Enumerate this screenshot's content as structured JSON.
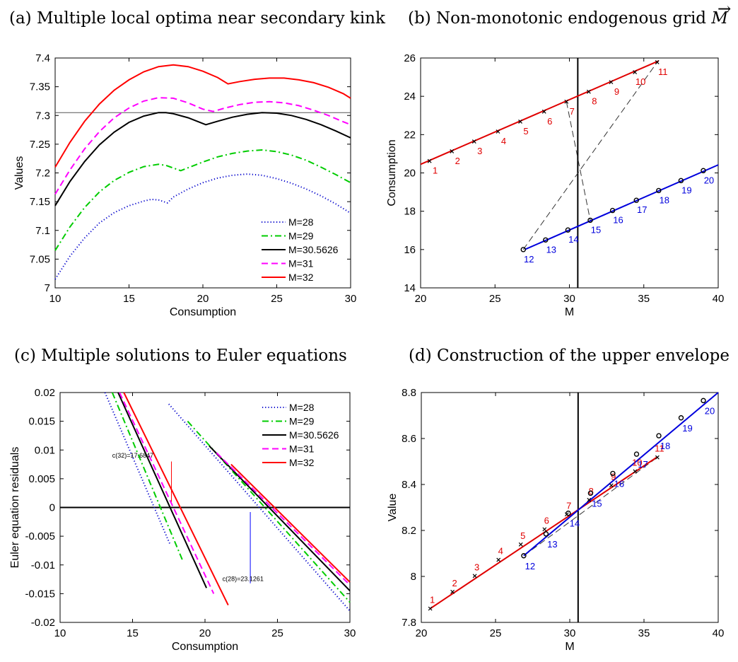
{
  "chart_data": [
    {
      "id": "a",
      "type": "line",
      "title": "(a) Multiple local optima near secondary kink",
      "xlabel": "Consumption",
      "ylabel": "Values",
      "xlim": [
        10,
        30
      ],
      "ylim": [
        7,
        7.4
      ],
      "xticks": [
        "10",
        "15",
        "20",
        "25",
        "30"
      ],
      "yticks": [
        "7",
        "7.05",
        "7.1",
        "7.15",
        "7.2",
        "7.25",
        "7.3",
        "7.35",
        "7.4"
      ],
      "legend": "bottom-right",
      "hline": 7.305,
      "series": [
        {
          "name": "M=28",
          "color": "#0000cc",
          "style": "dotted",
          "points": [
            [
              10,
              7.015
            ],
            [
              11,
              7.055
            ],
            [
              12,
              7.087
            ],
            [
              13,
              7.113
            ],
            [
              14,
              7.131
            ],
            [
              15,
              7.143
            ],
            [
              16,
              7.151
            ],
            [
              16.5,
              7.154
            ],
            [
              17,
              7.153
            ],
            [
              17.6,
              7.148
            ],
            [
              18,
              7.158
            ],
            [
              19,
              7.172
            ],
            [
              20,
              7.183
            ],
            [
              21,
              7.191
            ],
            [
              22,
              7.196
            ],
            [
              23,
              7.198
            ],
            [
              24,
              7.196
            ],
            [
              25,
              7.19
            ],
            [
              26,
              7.182
            ],
            [
              27,
              7.172
            ],
            [
              28,
              7.16
            ],
            [
              29,
              7.146
            ],
            [
              30,
              7.13
            ]
          ]
        },
        {
          "name": "M=29",
          "color": "#00cc00",
          "style": "dashdot",
          "points": [
            [
              10,
              7.065
            ],
            [
              11,
              7.106
            ],
            [
              12,
              7.14
            ],
            [
              13,
              7.167
            ],
            [
              14,
              7.187
            ],
            [
              15,
              7.201
            ],
            [
              16,
              7.211
            ],
            [
              17,
              7.215
            ],
            [
              17.5,
              7.213
            ],
            [
              18.5,
              7.204
            ],
            [
              19,
              7.209
            ],
            [
              20,
              7.219
            ],
            [
              21,
              7.228
            ],
            [
              22,
              7.234
            ],
            [
              23,
              7.238
            ],
            [
              24,
              7.24
            ],
            [
              25,
              7.237
            ],
            [
              26,
              7.231
            ],
            [
              27,
              7.222
            ],
            [
              28,
              7.21
            ],
            [
              29,
              7.197
            ],
            [
              30,
              7.183
            ]
          ]
        },
        {
          "name": "M=30.5626",
          "color": "#000000",
          "style": "solid",
          "points": [
            [
              10,
              7.143
            ],
            [
              11,
              7.185
            ],
            [
              12,
              7.22
            ],
            [
              13,
              7.249
            ],
            [
              14,
              7.271
            ],
            [
              15,
              7.288
            ],
            [
              16,
              7.299
            ],
            [
              17,
              7.305
            ],
            [
              17.5,
              7.305
            ],
            [
              18,
              7.303
            ],
            [
              19,
              7.296
            ],
            [
              20.2,
              7.284
            ],
            [
              21,
              7.29
            ],
            [
              22,
              7.297
            ],
            [
              23,
              7.302
            ],
            [
              24,
              7.305
            ],
            [
              25,
              7.304
            ],
            [
              26,
              7.3
            ],
            [
              27,
              7.293
            ],
            [
              28,
              7.284
            ],
            [
              29,
              7.273
            ],
            [
              30,
              7.261
            ]
          ]
        },
        {
          "name": "M=31",
          "color": "#ff00ff",
          "style": "dashed",
          "points": [
            [
              10,
              7.163
            ],
            [
              11,
              7.205
            ],
            [
              12,
              7.242
            ],
            [
              13,
              7.272
            ],
            [
              14,
              7.296
            ],
            [
              15,
              7.313
            ],
            [
              16,
              7.325
            ],
            [
              17,
              7.331
            ],
            [
              18,
              7.33
            ],
            [
              19,
              7.322
            ],
            [
              20,
              7.311
            ],
            [
              20.7,
              7.307
            ],
            [
              21.5,
              7.313
            ],
            [
              22.5,
              7.319
            ],
            [
              23.5,
              7.323
            ],
            [
              24.5,
              7.324
            ],
            [
              25.5,
              7.322
            ],
            [
              26.5,
              7.317
            ],
            [
              27.5,
              7.309
            ],
            [
              28.5,
              7.3
            ],
            [
              29.5,
              7.289
            ],
            [
              30,
              7.284
            ]
          ]
        },
        {
          "name": "M=32",
          "color": "#ff0000",
          "style": "solid",
          "points": [
            [
              10,
              7.21
            ],
            [
              11,
              7.253
            ],
            [
              12,
              7.29
            ],
            [
              13,
              7.32
            ],
            [
              14,
              7.344
            ],
            [
              15,
              7.362
            ],
            [
              16,
              7.376
            ],
            [
              17,
              7.385
            ],
            [
              18,
              7.388
            ],
            [
              19,
              7.385
            ],
            [
              20,
              7.377
            ],
            [
              21,
              7.366
            ],
            [
              21.7,
              7.355
            ],
            [
              22.5,
              7.359
            ],
            [
              23.5,
              7.363
            ],
            [
              24.5,
              7.365
            ],
            [
              25.5,
              7.365
            ],
            [
              26.5,
              7.362
            ],
            [
              27.5,
              7.357
            ],
            [
              28.5,
              7.349
            ],
            [
              29.5,
              7.338
            ],
            [
              30,
              7.33
            ]
          ]
        }
      ]
    },
    {
      "id": "b",
      "type": "line",
      "title": "(b) Non-monotonic endogenous grid",
      "title_symbol": "M",
      "xlabel": "M",
      "ylabel": "Consumption",
      "xlim": [
        20,
        40
      ],
      "ylim": [
        14,
        26
      ],
      "xticks": [
        "20",
        "25",
        "30",
        "35",
        "40"
      ],
      "yticks": [
        "14",
        "16",
        "18",
        "20",
        "22",
        "24",
        "26"
      ],
      "vline": 30.5626,
      "red_line": {
        "from": [
          20,
          20.45
        ],
        "to": [
          36,
          25.85
        ]
      },
      "blue_line": {
        "from": [
          27,
          16
        ],
        "to": [
          40,
          20.42
        ]
      },
      "red_points": [
        {
          "label": "1",
          "x": 20.6,
          "y": 20.62
        },
        {
          "label": "2",
          "x": 22.1,
          "y": 21.13
        },
        {
          "label": "3",
          "x": 23.6,
          "y": 21.64
        },
        {
          "label": "4",
          "x": 25.2,
          "y": 22.16
        },
        {
          "label": "5",
          "x": 26.7,
          "y": 22.68
        },
        {
          "label": "6",
          "x": 28.3,
          "y": 23.2
        },
        {
          "label": "7",
          "x": 29.8,
          "y": 23.72
        },
        {
          "label": "8",
          "x": 31.3,
          "y": 24.24
        },
        {
          "label": "9",
          "x": 32.8,
          "y": 24.74
        },
        {
          "label": "10",
          "x": 34.4,
          "y": 25.26
        },
        {
          "label": "11",
          "x": 35.9,
          "y": 25.78
        }
      ],
      "blue_points": [
        {
          "label": "12",
          "x": 26.9,
          "y": 16.0
        },
        {
          "label": "13",
          "x": 28.4,
          "y": 16.5
        },
        {
          "label": "14",
          "x": 29.9,
          "y": 17.02
        },
        {
          "label": "15",
          "x": 31.4,
          "y": 17.53
        },
        {
          "label": "16",
          "x": 32.9,
          "y": 18.04
        },
        {
          "label": "17",
          "x": 34.5,
          "y": 18.57
        },
        {
          "label": "18",
          "x": 36.0,
          "y": 19.08
        },
        {
          "label": "19",
          "x": 37.5,
          "y": 19.6
        },
        {
          "label": "20",
          "x": 39.0,
          "y": 20.12
        }
      ],
      "dashed_links": [
        [
          [
            26.9,
            16.0
          ],
          [
            35.9,
            25.78
          ]
        ],
        [
          [
            29.8,
            23.72
          ],
          [
            31.4,
            17.53
          ]
        ]
      ]
    },
    {
      "id": "c",
      "type": "line",
      "title": "(c) Multiple solutions to Euler equations",
      "xlabel": "Consumption",
      "ylabel": "Euler equation residuals",
      "xlim": [
        10,
        30
      ],
      "ylim": [
        -0.02,
        0.02
      ],
      "xticks": [
        "10",
        "15",
        "20",
        "25",
        "30"
      ],
      "yticks": [
        "-0.02",
        "-0.015",
        "-0.01",
        "-0.005",
        "0",
        "0.005",
        "0.01",
        "0.015",
        "0.02"
      ],
      "legend": "top-right",
      "hline": 0,
      "series": [
        {
          "name": "M=28",
          "color": "#0000cc",
          "style": "dotted",
          "segments": [
            [
              [
                13.1,
                0.02
              ],
              [
                17.6,
                -0.0065
              ]
            ],
            [
              [
                17.5,
                0.018
              ],
              [
                30,
                -0.018
              ]
            ]
          ]
        },
        {
          "name": "M=29",
          "color": "#00cc00",
          "style": "dashdot",
          "segments": [
            [
              [
                13.6,
                0.02
              ],
              [
                18.5,
                -0.0095
              ]
            ],
            [
              [
                18.8,
                0.015
              ],
              [
                30,
                -0.0165
              ]
            ]
          ]
        },
        {
          "name": "M=30.5626",
          "color": "#000000",
          "style": "solid",
          "segments": [
            [
              [
                14.0,
                0.02
              ],
              [
                20.1,
                -0.014
              ]
            ],
            [
              [
                20.3,
                0.0107
              ],
              [
                30,
                -0.0145
              ]
            ]
          ]
        },
        {
          "name": "M=31",
          "color": "#ff00ff",
          "style": "dashed",
          "segments": [
            [
              [
                14.1,
                0.02
              ],
              [
                20.6,
                -0.015
              ]
            ],
            [
              [
                20.8,
                0.0095
              ],
              [
                30,
                -0.0135
              ]
            ]
          ]
        },
        {
          "name": "M=32",
          "color": "#ff0000",
          "style": "solid",
          "segments": [
            [
              [
                14.4,
                0.02
              ],
              [
                21.6,
                -0.017
              ]
            ],
            [
              [
                21.8,
                0.0075
              ],
              [
                30,
                -0.013
              ]
            ]
          ]
        }
      ],
      "annotations": [
        {
          "text": "c(32)=17.6847",
          "x": 17.6847,
          "y_from": 0.008,
          "y_to": 0.001,
          "color": "#ff0000",
          "text_x": 13.6,
          "text_y": 0.0087
        },
        {
          "text": "c(28)=23.1261",
          "x": 23.1261,
          "y_from": -0.0132,
          "y_to": -0.0008,
          "color": "#0000ff",
          "text_x": 21.2,
          "text_y": -0.0128
        }
      ]
    },
    {
      "id": "d",
      "type": "line",
      "title": "(d) Construction of the upper envelope",
      "xlabel": "M",
      "ylabel": "Value",
      "xlim": [
        20,
        40
      ],
      "ylim": [
        7.8,
        8.8
      ],
      "xticks": [
        "20",
        "25",
        "30",
        "35",
        "40"
      ],
      "yticks": [
        "7.8",
        "8",
        "8.2",
        "8.4",
        "8.6",
        "8.8"
      ],
      "vline": 30.5626,
      "red_line": {
        "from": [
          20.6,
          7.86
        ],
        "to": [
          35.9,
          8.52
        ]
      },
      "blue_line": {
        "from": [
          26.9,
          8.09
        ],
        "to": [
          40,
          8.8
        ]
      },
      "red_points": [
        {
          "label": "1",
          "x": 20.6,
          "y": 7.86
        },
        {
          "label": "2",
          "x": 22.1,
          "y": 7.933
        },
        {
          "label": "3",
          "x": 23.6,
          "y": 8.002
        },
        {
          "label": "4",
          "x": 25.2,
          "y": 8.072
        },
        {
          "label": "5",
          "x": 26.7,
          "y": 8.139
        },
        {
          "label": "6",
          "x": 28.3,
          "y": 8.205
        },
        {
          "label": "7",
          "x": 29.8,
          "y": 8.27
        },
        {
          "label": "8",
          "x": 31.3,
          "y": 8.333
        },
        {
          "label": "9",
          "x": 32.8,
          "y": 8.396
        },
        {
          "label": "10",
          "x": 34.4,
          "y": 8.457
        },
        {
          "label": "11",
          "x": 35.9,
          "y": 8.518
        }
      ],
      "blue_points": [
        {
          "label": "12",
          "x": 26.9,
          "y": 8.09
        },
        {
          "label": "13",
          "x": 28.4,
          "y": 8.185
        },
        {
          "label": "14",
          "x": 29.9,
          "y": 8.275
        },
        {
          "label": "15",
          "x": 31.4,
          "y": 8.362
        },
        {
          "label": "16",
          "x": 32.9,
          "y": 8.448
        },
        {
          "label": "17",
          "x": 34.5,
          "y": 8.532
        },
        {
          "label": "18",
          "x": 36.0,
          "y": 8.612
        },
        {
          "label": "19",
          "x": 37.5,
          "y": 8.69
        },
        {
          "label": "20",
          "x": 39.0,
          "y": 8.765
        }
      ],
      "dashed_links": [
        [
          [
            26.9,
            8.09
          ],
          [
            35.9,
            8.518
          ]
        ]
      ]
    }
  ]
}
